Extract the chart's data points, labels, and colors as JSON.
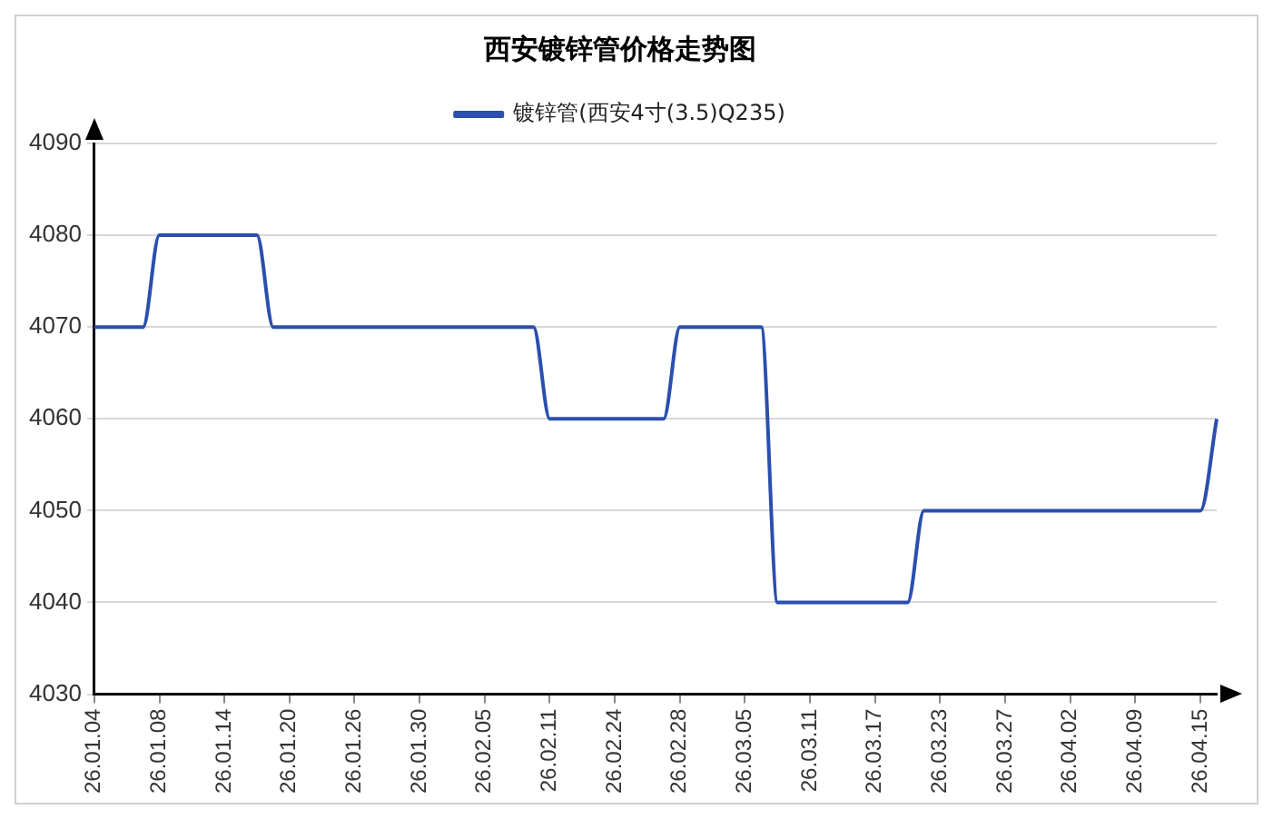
{
  "chart_data": {
    "type": "line",
    "title": "西安镀锌管价格走势图",
    "categories": [
      "26.01.04",
      null,
      null,
      null,
      "26.01.08",
      null,
      null,
      null,
      "26.01.14",
      null,
      null,
      null,
      "26.01.20",
      null,
      null,
      null,
      "26.01.26",
      null,
      null,
      null,
      "26.01.30",
      null,
      null,
      null,
      "26.02.05",
      null,
      null,
      null,
      "26.02.11",
      null,
      null,
      null,
      "26.02.24",
      null,
      null,
      null,
      "26.02.28",
      null,
      null,
      null,
      "26.03.05",
      null,
      null,
      null,
      "26.03.11",
      null,
      null,
      null,
      "26.03.17",
      null,
      null,
      null,
      "26.03.23",
      null,
      null,
      null,
      "26.03.27",
      null,
      null,
      null,
      "26.04.02",
      null,
      null,
      null,
      "26.04.09",
      null,
      null,
      null,
      "26.04.15",
      null
    ],
    "series": [
      {
        "name": "镀锌管(西安4寸(3.5)Q235)",
        "color": "#2a4fae",
        "values": [
          4070,
          4070,
          4070,
          4070,
          4080,
          4080,
          4080,
          4080,
          4080,
          4080,
          4080,
          4070,
          4070,
          4070,
          4070,
          4070,
          4070,
          4070,
          4070,
          4070,
          4070,
          4070,
          4070,
          4070,
          4070,
          4070,
          4070,
          4070,
          4060,
          4060,
          4060,
          4060,
          4060,
          4060,
          4060,
          4060,
          4070,
          4070,
          4070,
          4070,
          4070,
          4070,
          4040,
          4040,
          4040,
          4040,
          4040,
          4040,
          4040,
          4040,
          4040,
          4050,
          4050,
          4050,
          4050,
          4050,
          4050,
          4050,
          4050,
          4050,
          4050,
          4050,
          4050,
          4050,
          4050,
          4050,
          4050,
          4050,
          4050,
          4060
        ]
      }
    ],
    "ylim": [
      4030,
      4090
    ],
    "yticks": [
      4030,
      4040,
      4050,
      4060,
      4070,
      4080,
      4090
    ],
    "grid": "y",
    "legend": "top",
    "marker": "none",
    "line_style": "solid"
  }
}
